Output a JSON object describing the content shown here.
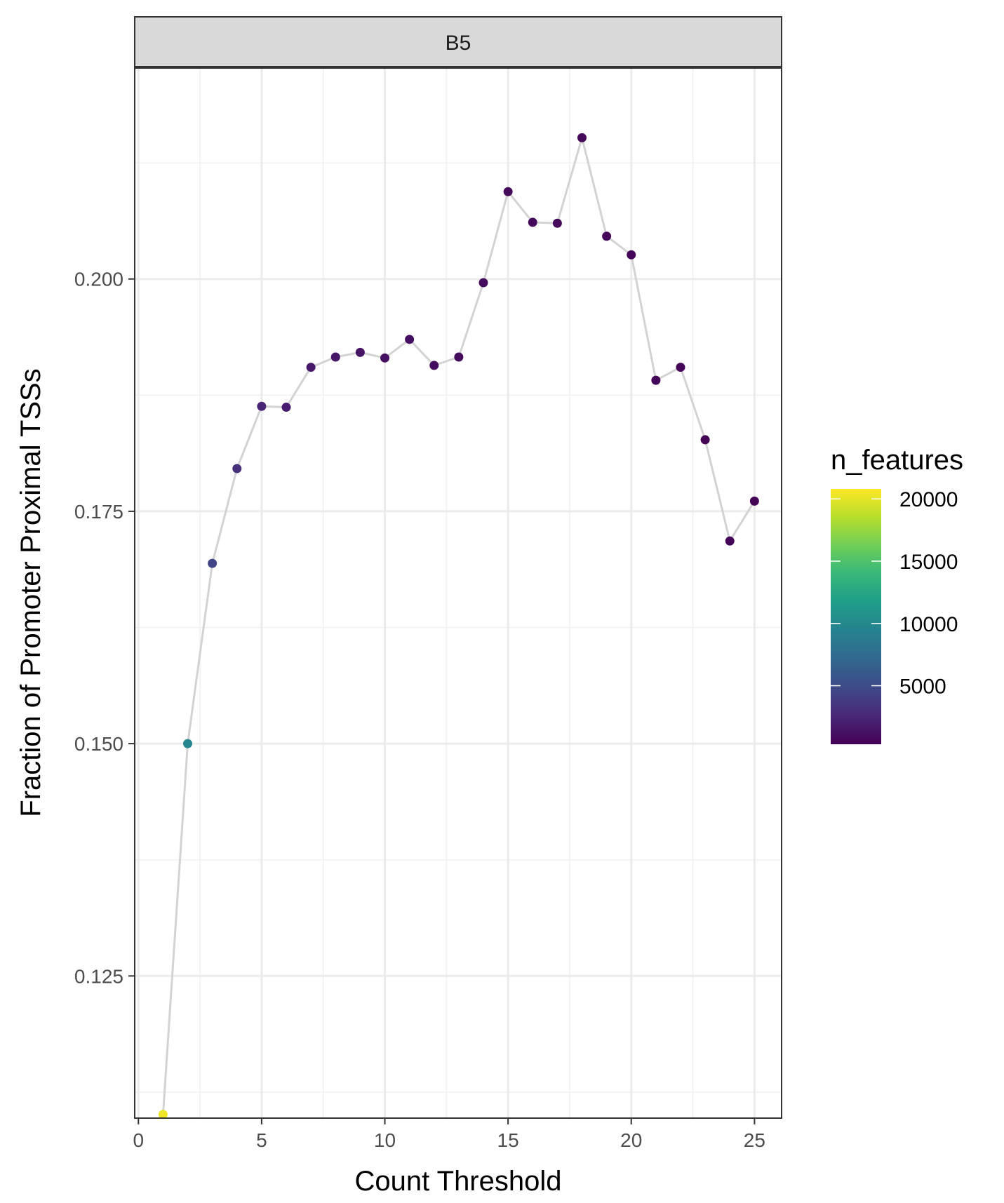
{
  "chart_data": {
    "type": "line",
    "facet": "B5",
    "xlabel": "Count Threshold",
    "ylabel": "Fraction of Promoter Proximal TSSs",
    "xlim": [
      -0.15,
      26.1
    ],
    "ylim": [
      0.1097,
      0.2227
    ],
    "x_ticks": [
      0,
      5,
      10,
      15,
      20,
      25
    ],
    "x_tick_labels": [
      "0",
      "5",
      "10",
      "15",
      "20",
      "25"
    ],
    "y_ticks": [
      0.125,
      0.15,
      0.175,
      0.2
    ],
    "y_tick_labels": [
      "0.125",
      "0.150",
      "0.175",
      "0.200"
    ],
    "grid": true,
    "line_color": "#d3d3d3",
    "points": [
      {
        "x": 1,
        "y": 0.1101,
        "n_features": 20300
      },
      {
        "x": 2,
        "y": 0.15,
        "n_features": 9800
      },
      {
        "x": 3,
        "y": 0.1694,
        "n_features": 4500
      },
      {
        "x": 4,
        "y": 0.1796,
        "n_features": 3100
      },
      {
        "x": 5,
        "y": 0.1863,
        "n_features": 2400
      },
      {
        "x": 6,
        "y": 0.1862,
        "n_features": 2000
      },
      {
        "x": 7,
        "y": 0.1905,
        "n_features": 1700
      },
      {
        "x": 8,
        "y": 0.1916,
        "n_features": 1500
      },
      {
        "x": 9,
        "y": 0.1921,
        "n_features": 1350
      },
      {
        "x": 10,
        "y": 0.1915,
        "n_features": 1200
      },
      {
        "x": 11,
        "y": 0.1935,
        "n_features": 1100
      },
      {
        "x": 12,
        "y": 0.1907,
        "n_features": 1000
      },
      {
        "x": 13,
        "y": 0.1916,
        "n_features": 930
      },
      {
        "x": 14,
        "y": 0.1996,
        "n_features": 870
      },
      {
        "x": 15,
        "y": 0.2094,
        "n_features": 810
      },
      {
        "x": 16,
        "y": 0.2061,
        "n_features": 760
      },
      {
        "x": 17,
        "y": 0.206,
        "n_features": 720
      },
      {
        "x": 18,
        "y": 0.2152,
        "n_features": 680
      },
      {
        "x": 19,
        "y": 0.2046,
        "n_features": 640
      },
      {
        "x": 20,
        "y": 0.2026,
        "n_features": 610
      },
      {
        "x": 21,
        "y": 0.1891,
        "n_features": 580
      },
      {
        "x": 22,
        "y": 0.1905,
        "n_features": 550
      },
      {
        "x": 23,
        "y": 0.1827,
        "n_features": 520
      },
      {
        "x": 24,
        "y": 0.1718,
        "n_features": 500
      },
      {
        "x": 25,
        "y": 0.1761,
        "n_features": 480
      }
    ],
    "legend": {
      "title": "n_features",
      "placement": "right",
      "range": [
        300,
        20800
      ],
      "ticks": [
        5000,
        10000,
        15000,
        20000
      ],
      "tick_labels": [
        "5000",
        "10000",
        "15000",
        "20000"
      ],
      "colors": [
        "#440154",
        "#482878",
        "#3e4a89",
        "#31688e",
        "#26828e",
        "#1f9e89",
        "#35b779",
        "#6ece58",
        "#b5de2b",
        "#fde725"
      ]
    }
  }
}
